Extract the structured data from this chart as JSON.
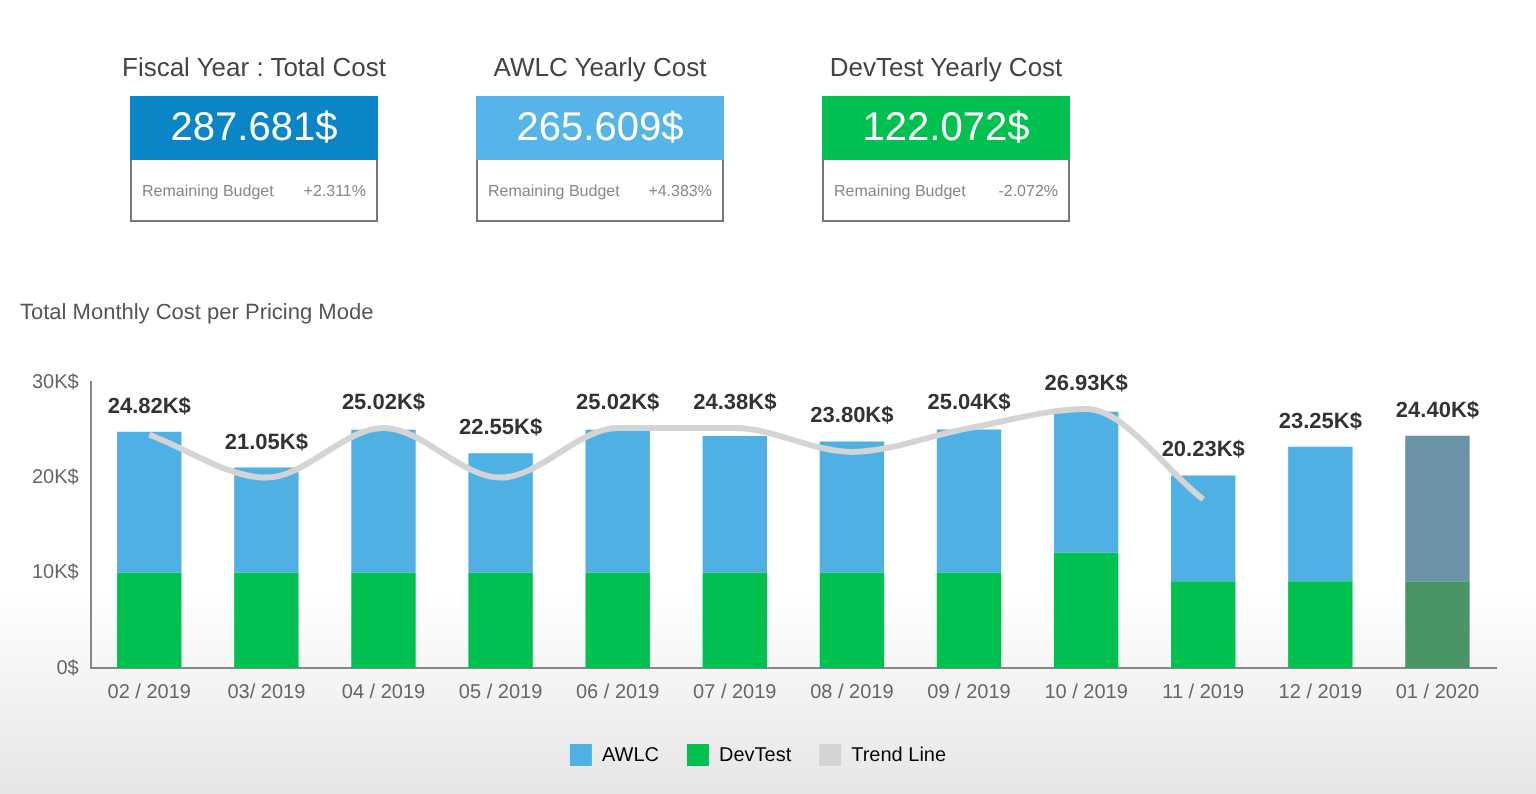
{
  "chart_data": [
    {
      "type": "other",
      "title": "Fiscal Year : Total Cost",
      "color": "#0a86c8",
      "annotations": [
        "287.681$",
        "Remaining Budget",
        "+2.311%"
      ]
    },
    {
      "type": "other",
      "title": "AWLC Yearly Cost",
      "color": "#55b4e8",
      "annotations": [
        "265.609$",
        "Remaining Budget",
        "+4.383%"
      ]
    },
    {
      "type": "other",
      "title": "DevTest Yearly Cost",
      "color": "#00c050",
      "annotations": [
        "122.072$",
        "Remaining Budget",
        "-2.072%"
      ]
    },
    {
      "type": "bar",
      "title": "Total Monthly Cost per Pricing Mode",
      "stacked": true,
      "legend": "bottom",
      "grid": false,
      "categories": [
        "02 / 2019",
        "03/ 2019",
        "04 / 2019",
        "05 / 2019",
        "06 / 2019",
        "07 / 2019",
        "08 / 2019",
        "09 / 2019",
        "10 / 2019",
        "11 / 2019",
        "12 / 2019",
        "01 / 2020"
      ],
      "series": [
        {
          "name": "DevTest",
          "color": "#00c050",
          "colors": [
            "#00c050",
            "#00c050",
            "#00c050",
            "#00c050",
            "#00c050",
            "#00c050",
            "#00c050",
            "#00c050",
            "#00c050",
            "#00c050",
            "#00c050",
            "#4a9466"
          ],
          "values": [
            10,
            10,
            10,
            10,
            10,
            10,
            10,
            10,
            12.1,
            9.1,
            9.1,
            9.1
          ]
        },
        {
          "name": "AWLC",
          "color": "#4fb0e4",
          "colors": [
            "#4fb0e4",
            "#4fb0e4",
            "#4fb0e4",
            "#4fb0e4",
            "#4fb0e4",
            "#4fb0e4",
            "#4fb0e4",
            "#4fb0e4",
            "#4fb0e4",
            "#4fb0e4",
            "#4fb0e4",
            "#6a93a8"
          ],
          "values": [
            14.82,
            11.05,
            15.02,
            12.55,
            15.02,
            14.38,
            13.8,
            15.04,
            14.83,
            11.13,
            14.15,
            15.3
          ]
        },
        {
          "name": "Trend Line",
          "type": "line",
          "color": "#d4d4d4",
          "values": [
            24.5,
            20,
            25.2,
            20,
            25.2,
            25.2,
            22.7,
            25.2,
            27.2,
            17.7,
            null,
            null
          ]
        }
      ],
      "totals": [
        "24.82K$",
        "21.05K$",
        "25.02K$",
        "22.55K$",
        "25.02K$",
        "24.38K$",
        "23.80K$",
        "25.04K$",
        "26.93K$",
        "20.23K$",
        "23.25K$",
        "24.40K$"
      ],
      "ylim": [
        0,
        30
      ],
      "yticks": [
        {
          "value": 0,
          "label": "0$"
        },
        {
          "value": 10,
          "label": "10K$"
        },
        {
          "value": 20,
          "label": "20K$"
        },
        {
          "value": 30,
          "label": "30K$"
        }
      ]
    }
  ]
}
